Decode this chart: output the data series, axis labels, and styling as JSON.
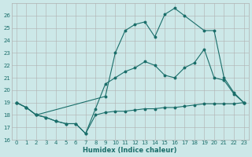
{
  "background_color": "#cce8e8",
  "grid_color": "#b0b0b0",
  "line_color": "#1a6e6a",
  "xlabel": "Humidex (Indice chaleur)",
  "ylim": [
    16,
    27
  ],
  "xlim": [
    -0.5,
    23.5
  ],
  "yticks": [
    16,
    17,
    18,
    19,
    20,
    21,
    22,
    23,
    24,
    25,
    26
  ],
  "xticks": [
    0,
    1,
    2,
    3,
    4,
    5,
    6,
    7,
    8,
    9,
    10,
    11,
    12,
    13,
    14,
    15,
    16,
    17,
    18,
    19,
    20,
    21,
    22,
    23
  ],
  "series1_x": [
    0,
    1,
    2,
    3,
    4,
    5,
    6,
    7,
    8,
    9,
    10,
    11,
    12,
    13,
    14,
    15,
    16,
    17,
    18,
    19,
    20,
    21,
    22,
    23
  ],
  "series1_y": [
    19,
    18.6,
    18.0,
    17.8,
    17.5,
    17.3,
    17.3,
    16.5,
    18.0,
    18.2,
    18.3,
    18.3,
    18.4,
    18.5,
    18.5,
    18.6,
    18.6,
    18.7,
    18.8,
    18.9,
    18.9,
    18.9,
    18.9,
    19.0
  ],
  "series2_x": [
    0,
    1,
    2,
    3,
    4,
    5,
    6,
    7,
    8,
    9,
    10,
    11,
    12,
    13,
    14,
    15,
    16,
    17,
    18,
    19,
    20,
    21,
    22,
    23
  ],
  "series2_y": [
    19,
    18.6,
    18.0,
    17.8,
    17.5,
    17.3,
    17.3,
    16.5,
    18.5,
    20.5,
    21.0,
    21.5,
    21.8,
    22.3,
    22.0,
    21.2,
    21.0,
    21.8,
    22.2,
    23.3,
    21.0,
    20.8,
    19.7,
    19.0
  ],
  "series3_x": [
    0,
    1,
    2,
    9,
    10,
    11,
    12,
    13,
    14,
    15,
    16,
    17,
    19,
    20,
    21,
    22,
    23
  ],
  "series3_y": [
    19,
    18.6,
    18.0,
    19.5,
    23.0,
    24.8,
    25.3,
    25.5,
    24.3,
    26.1,
    26.6,
    26.0,
    24.8,
    24.8,
    21.0,
    19.8,
    19.0
  ]
}
